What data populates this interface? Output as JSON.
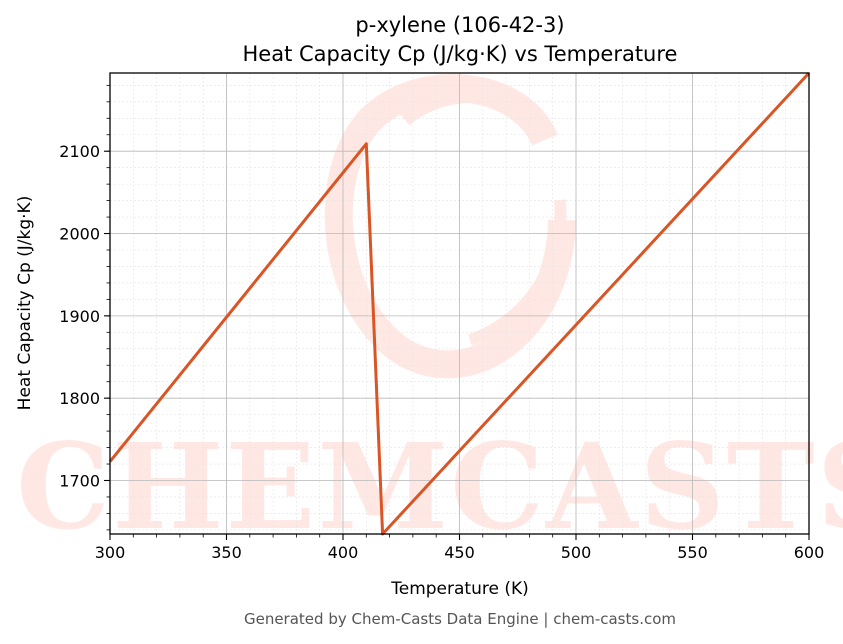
{
  "chart_data": {
    "type": "line",
    "title_line1": "p-xylene (106-42-3)",
    "title_line2": "Heat Capacity Cp (J/kg·K) vs Temperature",
    "xlabel": "Temperature (K)",
    "ylabel": "Heat Capacity Cp (J/kg·K)",
    "xlim": [
      300,
      600
    ],
    "ylim": [
      1635,
      2195
    ],
    "xticks": [
      300,
      350,
      400,
      450,
      500,
      550,
      600
    ],
    "yticks": [
      1700,
      1800,
      1900,
      2000,
      2100
    ],
    "grid": true,
    "series": [
      {
        "color": "#d95525",
        "points": [
          [
            300,
            1723
          ],
          [
            410,
            2109
          ],
          [
            417,
            1635
          ],
          [
            600,
            2195
          ]
        ]
      }
    ],
    "watermark": "CHEMCASTS",
    "footer": "Generated by Chem-Casts Data Engine | chem-casts.com"
  }
}
